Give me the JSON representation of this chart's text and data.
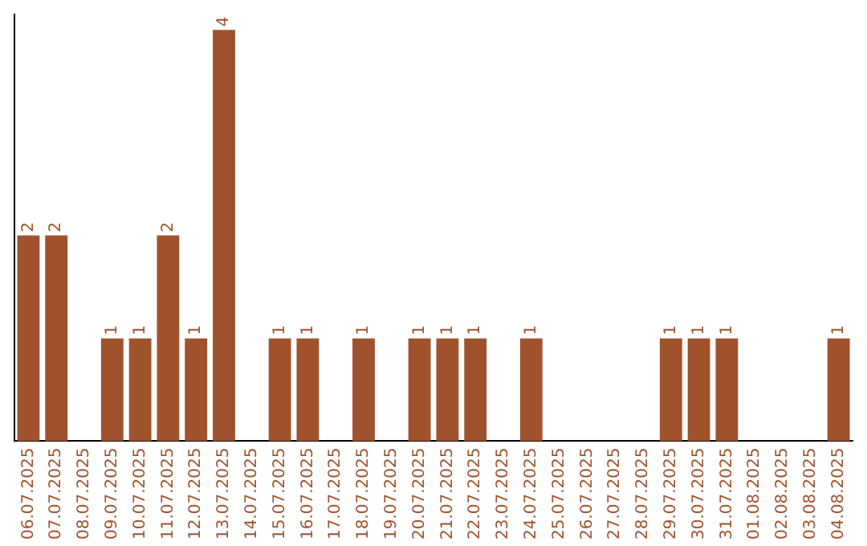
{
  "chart_data": {
    "type": "bar",
    "categories": [
      "06.07.2025",
      "07.07.2025",
      "08.07.2025",
      "09.07.2025",
      "10.07.2025",
      "11.07.2025",
      "12.07.2025",
      "13.07.2025",
      "14.07.2025",
      "15.07.2025",
      "16.07.2025",
      "17.07.2025",
      "18.07.2025",
      "19.07.2025",
      "20.07.2025",
      "21.07.2025",
      "22.07.2025",
      "23.07.2025",
      "24.07.2025",
      "25.07.2025",
      "26.07.2025",
      "27.07.2025",
      "28.07.2025",
      "29.07.2025",
      "30.07.2025",
      "31.07.2025",
      "01.08.2025",
      "02.08.2025",
      "03.08.2025",
      "04.08.2025"
    ],
    "values": [
      2,
      2,
      0,
      1,
      1,
      2,
      1,
      4,
      0,
      1,
      1,
      0,
      1,
      0,
      1,
      1,
      1,
      0,
      1,
      0,
      0,
      0,
      0,
      1,
      1,
      1,
      0,
      0,
      0,
      1
    ],
    "value_labels": [
      "2",
      "2",
      null,
      "1",
      "1",
      "2",
      "1",
      "4",
      null,
      "1",
      "1",
      null,
      "1",
      null,
      "1",
      "1",
      "1",
      null,
      "1",
      null,
      null,
      null,
      null,
      "1",
      "1",
      "1",
      null,
      null,
      null,
      "1"
    ],
    "color": "#a0522d",
    "ylim": [
      0,
      4.15
    ],
    "tick_labels": "x",
    "grid": false,
    "legend": false
  }
}
